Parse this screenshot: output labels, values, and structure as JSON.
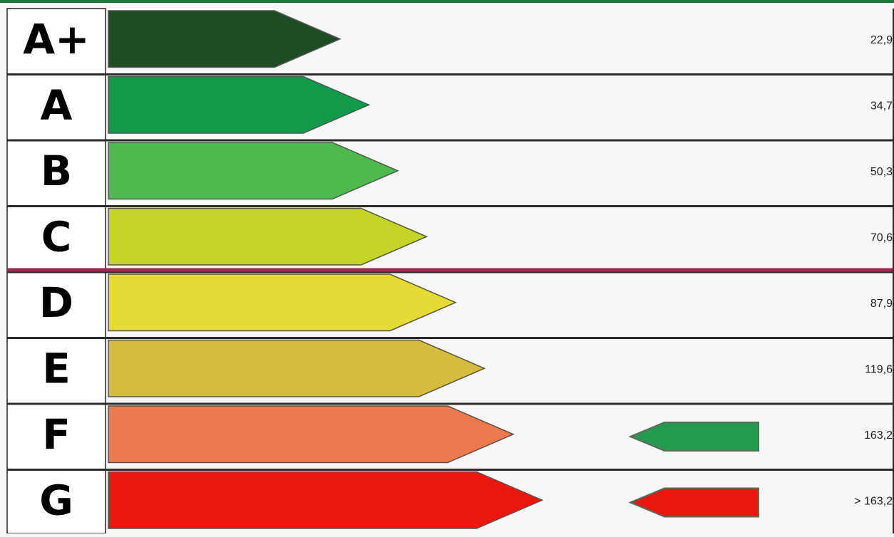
{
  "chart_data": {
    "type": "bar",
    "categories": [
      "A+",
      "A",
      "B",
      "C",
      "D",
      "E",
      "F",
      "G"
    ],
    "values": [
      "22,9",
      "34,7",
      "50,3",
      "70,6",
      "87,9",
      "119,6",
      "163,2",
      "> 163,2"
    ],
    "bar_colors": [
      "#1f4d23",
      "#12994a",
      "#4fb84f",
      "#c4d42a",
      "#e6da36",
      "#d6bd40",
      "#ec7a4e",
      "#e8180f"
    ],
    "reference_line_position": "between C and D",
    "reference_line_color": "#9b2a4e",
    "indicators": [
      {
        "row": "F",
        "color": "#239a4f"
      },
      {
        "row": "G",
        "color": "#e8180f"
      }
    ],
    "border_color": "#1a7a3c"
  }
}
